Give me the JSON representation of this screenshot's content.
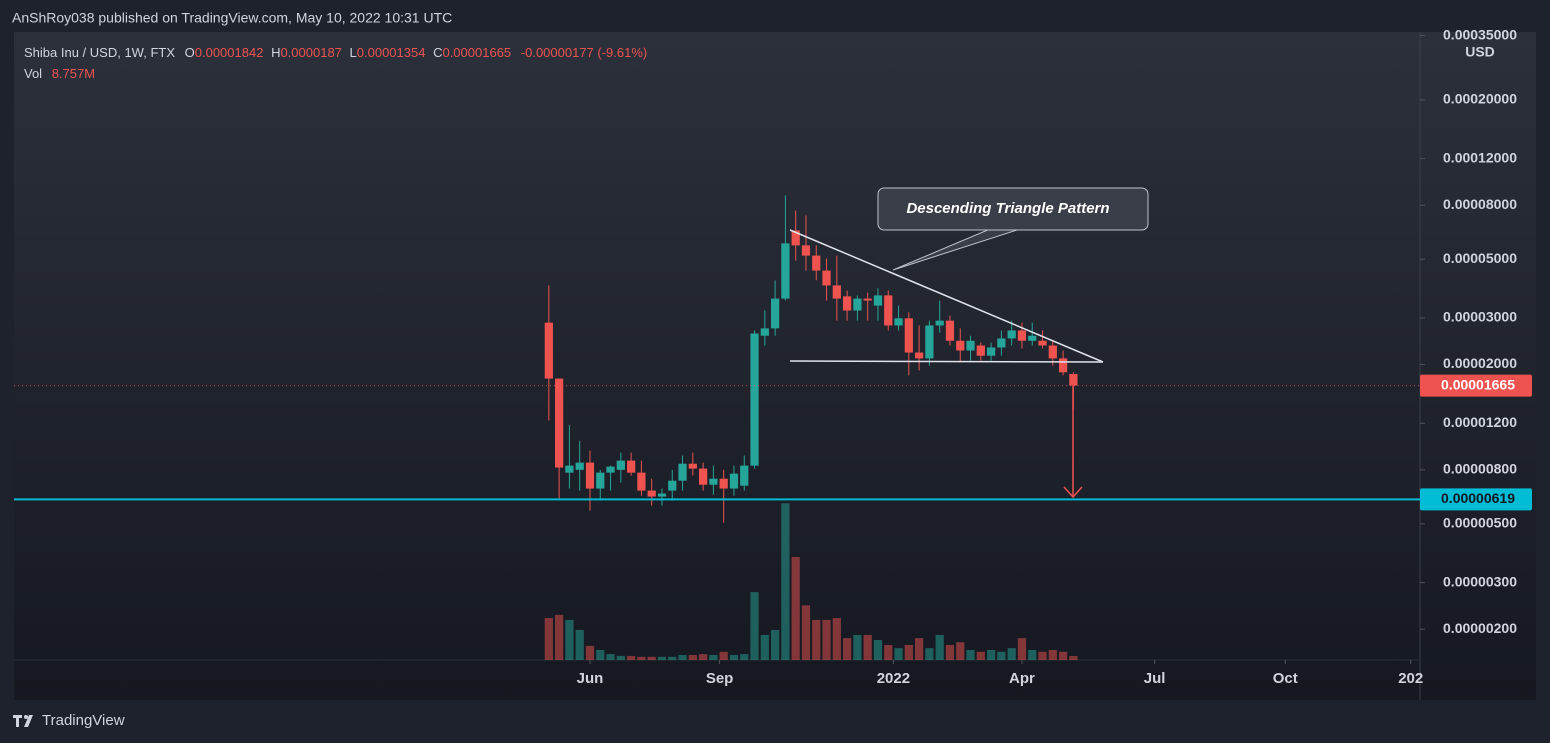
{
  "chart_data": {
    "type": "candlestick",
    "published_by": "AnShRoy038 published on TradingView.com, May 10, 2022 10:31 UTC",
    "title": "Shiba Inu / USD, 1W, FTX",
    "ohlc_labels": [
      "O",
      "H",
      "L",
      "C"
    ],
    "change": "-0.00000177 (-9.61%)",
    "price_axis_unit": "USD",
    "footer": "TradingView",
    "annotation": "Descending Triangle Pattern",
    "log_scale": true,
    "color_up": "#26a69a",
    "color_down": "#ef5350",
    "ylim": [
      1.53e-06,
      0.000361
    ],
    "yticks": [
      {
        "value": 0.00035,
        "label": "0.00035000"
      },
      {
        "value": 0.0002,
        "label": "0.00020000"
      },
      {
        "value": 0.00012,
        "label": "0.00012000"
      },
      {
        "value": 8e-05,
        "label": "0.00008000"
      },
      {
        "value": 5e-05,
        "label": "0.00005000"
      },
      {
        "value": 3e-05,
        "label": "0.00003000"
      },
      {
        "value": 2e-05,
        "label": "0.00002000"
      },
      {
        "value": 1.2e-05,
        "label": "0.00001200"
      },
      {
        "value": 8e-06,
        "label": "0.00000800"
      },
      {
        "value": 5e-06,
        "label": "0.00000500"
      },
      {
        "value": 3e-06,
        "label": "0.00000300"
      },
      {
        "value": 2e-06,
        "label": "0.00000200"
      }
    ],
    "xlim": [
      -52,
      84.7
    ],
    "xticks": [
      {
        "value": 4,
        "label": "Jun"
      },
      {
        "value": 16.6,
        "label": "Sep"
      },
      {
        "value": 33.5,
        "label": "2022"
      },
      {
        "value": 46,
        "label": "Apr"
      },
      {
        "value": 58.9,
        "label": "Jul"
      },
      {
        "value": 71.6,
        "label": "Oct"
      },
      {
        "value": 83.8,
        "label": "202"
      }
    ],
    "support_level": 6.19e-06,
    "support_color": "#00bcd4",
    "candles": {
      "open": [
        2.88e-05,
        1.77e-05,
        7.81e-06,
        8e-06,
        8.52e-06,
        6.8e-06,
        7.81e-06,
        8e-06,
        8.67e-06,
        7.81e-06,
        6.68e-06,
        6.34e-06,
        6.68e-06,
        7.28e-06,
        8.44e-06,
        8.09e-06,
        7.03e-06,
        7.41e-06,
        6.8e-06,
        6.97e-06,
        8.3e-06,
        2.57e-05,
        2.74e-05,
        3.55e-05,
        6.42e-05,
        5.64e-05,
        5.16e-05,
        4.53e-05,
        3.98e-05,
        3.62e-05,
        3.2e-05,
        3.55e-05,
        3.34e-05,
        3.65e-05,
        2.81e-05,
        2.99e-05,
        2.22e-05,
        2.11e-05,
        2.81e-05,
        2.93e-05,
        2.46e-05,
        2.26e-05,
        2.36e-05,
        2.16e-05,
        2.32e-05,
        2.51e-05,
        2.69e-05,
        2.46e-05,
        2.46e-05,
        2.36e-05,
        2.11e-05,
        1.842e-05
      ],
      "high": [
        3.98e-05,
        1.77e-05,
        1.18e-05,
        1.03e-05,
        9.46e-06,
        8e-06,
        8.3e-06,
        9.3e-06,
        9.3e-06,
        8.67e-06,
        7.41e-06,
        6.8e-06,
        8e-06,
        9.06e-06,
        9.3e-06,
        8.52e-06,
        8.3e-06,
        8e-06,
        8.3e-06,
        9.06e-06,
        2.69e-05,
        3.2e-05,
        4.16e-05,
        8.71e-05,
        7.64e-05,
        7.32e-05,
        5.64e-05,
        5.03e-05,
        5.16e-05,
        3.81e-05,
        3.65e-05,
        3.74e-05,
        3.88e-05,
        3.81e-05,
        3.34e-05,
        3.15e-05,
        2.81e-05,
        2.93e-05,
        3.49e-05,
        3.06e-05,
        2.74e-05,
        2.57e-05,
        2.42e-05,
        2.42e-05,
        2.69e-05,
        2.93e-05,
        2.88e-05,
        2.88e-05,
        2.69e-05,
        2.46e-05,
        2.26e-05,
        1.87e-05
      ],
      "low": [
        1.23e-05,
        6.23e-06,
        6.8e-06,
        6.68e-06,
        5.61e-06,
        6.12e-06,
        6.68e-06,
        7.16e-06,
        7.61e-06,
        6.39e-06,
        5.86e-06,
        5.86e-06,
        6.12e-06,
        6.68e-06,
        7.61e-06,
        6.68e-06,
        6.45e-06,
        5.05e-06,
        6.39e-06,
        6.68e-06,
        8.09e-06,
        2.36e-05,
        2.57e-05,
        3.49e-05,
        4.94e-05,
        4.53e-05,
        4.16e-05,
        3.49e-05,
        2.93e-05,
        2.93e-05,
        2.93e-05,
        2.93e-05,
        2.93e-05,
        2.69e-05,
        2.69e-05,
        1.82e-05,
        1.9e-05,
        1.98e-05,
        2.64e-05,
        2.36e-05,
        2.04e-05,
        2.07e-05,
        2.07e-05,
        2.07e-05,
        2.16e-05,
        2.36e-05,
        2.3e-05,
        2.36e-05,
        2.3e-05,
        1.98e-05,
        1.82e-05,
        1.354e-05
      ],
      "close": [
        1.77e-05,
        8.16e-06,
        8.3e-06,
        8.52e-06,
        6.8e-06,
        7.81e-06,
        8.23e-06,
        8.67e-06,
        7.81e-06,
        6.68e-06,
        6.34e-06,
        6.51e-06,
        7.28e-06,
        8.44e-06,
        8.09e-06,
        7.03e-06,
        7.41e-06,
        6.8e-06,
        7.74e-06,
        8.3e-06,
        2.62e-05,
        2.74e-05,
        3.55e-05,
        5.74e-05,
        5.64e-05,
        5.16e-05,
        4.53e-05,
        3.98e-05,
        3.55e-05,
        3.2e-05,
        3.55e-05,
        3.49e-05,
        3.65e-05,
        2.81e-05,
        2.99e-05,
        2.22e-05,
        2.11e-05,
        2.81e-05,
        2.93e-05,
        2.46e-05,
        2.26e-05,
        2.46e-05,
        2.16e-05,
        2.32e-05,
        2.51e-05,
        2.69e-05,
        2.46e-05,
        2.57e-05,
        2.36e-05,
        2.11e-05,
        1.87e-05,
        1.665e-05
      ]
    },
    "volume": {
      "name": "Vol",
      "ylim": [
        0,
        360000000
      ],
      "values": [
        92000000,
        99000000,
        88000000,
        66000000,
        31000000,
        22000000,
        13000000,
        9000000,
        9000000,
        7000000,
        7000000,
        7000000,
        7000000,
        11000000,
        11000000,
        13000000,
        11000000,
        18000000,
        11000000,
        13000000,
        149000000,
        55000000,
        66000000,
        344000000,
        226000000,
        120000000,
        88000000,
        88000000,
        92000000,
        48000000,
        55000000,
        55000000,
        44000000,
        33000000,
        26000000,
        33000000,
        48000000,
        26000000,
        55000000,
        33000000,
        39000000,
        22000000,
        18000000,
        22000000,
        18000000,
        26000000,
        48000000,
        22000000,
        18000000,
        22000000,
        18000000,
        8757000
      ],
      "value_labels": [
        null,
        null,
        null,
        null,
        null,
        null,
        null,
        null,
        null,
        null,
        null,
        null,
        null,
        null,
        null,
        null,
        null,
        null,
        null,
        null,
        null,
        null,
        null,
        null,
        null,
        null,
        null,
        null,
        null,
        null,
        null,
        null,
        null,
        null,
        null,
        null,
        null,
        null,
        null,
        null,
        null,
        null,
        null,
        null,
        null,
        null,
        null,
        null,
        null,
        null,
        null,
        "8.757M"
      ]
    }
  }
}
